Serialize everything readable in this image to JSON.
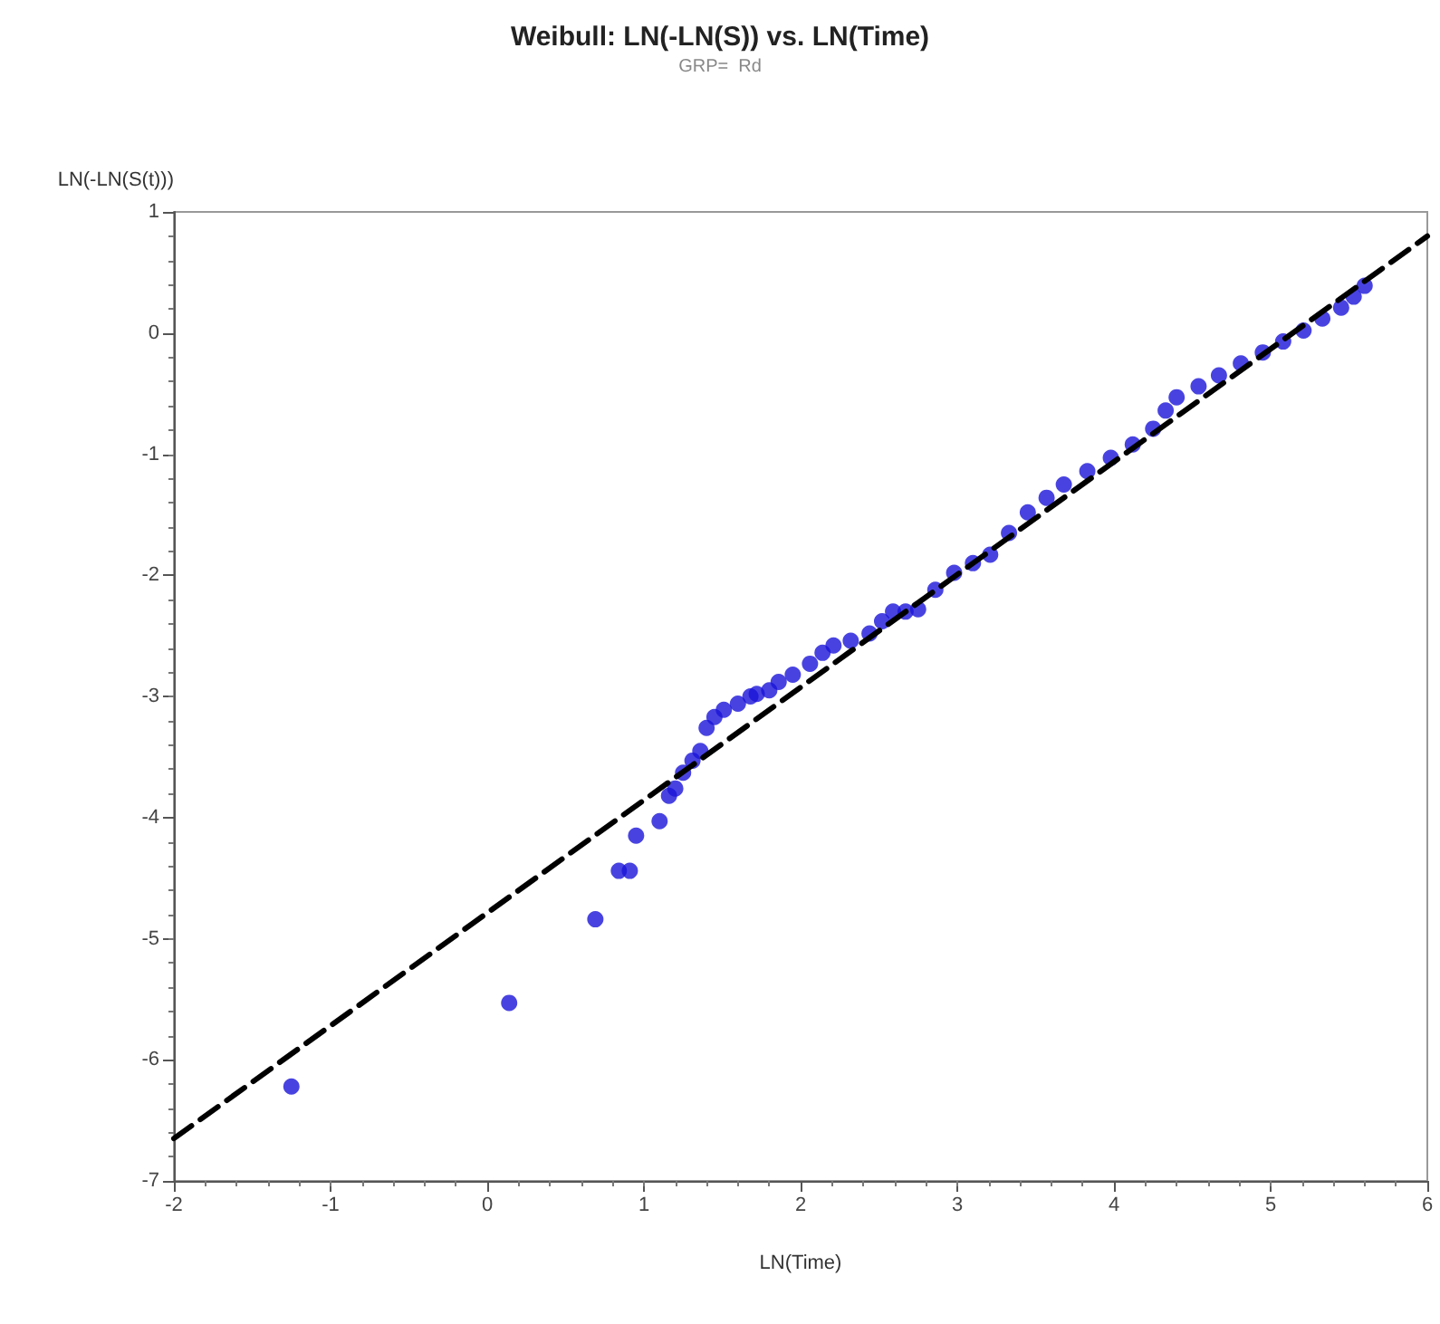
{
  "chart_data": {
    "type": "scatter",
    "title": "Weibull: LN(-LN(S)) vs. LN(Time)",
    "subtitle": "GRP=  Rd",
    "xlabel": "LN(Time)",
    "ylabel": "LN(-LN(S(t)))",
    "xlim": [
      -2,
      6
    ],
    "xticks": [
      -2,
      -1,
      0,
      1,
      2,
      3,
      4,
      5,
      6
    ],
    "ylim": [
      -7,
      1
    ],
    "yticks": [
      -7,
      -6,
      -5,
      -4,
      -3,
      -2,
      -1,
      0,
      1
    ],
    "grid": false,
    "marker": "circle",
    "series": [
      {
        "color": "#1a14d8",
        "x": [
          -1.25,
          0.14,
          0.69,
          0.84,
          0.91,
          0.95,
          1.1,
          1.16,
          1.2,
          1.25,
          1.31,
          1.36,
          1.4,
          1.45,
          1.51,
          1.6,
          1.68,
          1.72,
          1.8,
          1.86,
          1.95,
          2.06,
          2.14,
          2.21,
          2.32,
          2.44,
          2.52,
          2.59,
          2.67,
          2.75,
          2.86,
          2.98,
          3.1,
          3.21,
          3.33,
          3.45,
          3.57,
          3.68,
          3.83,
          3.98,
          4.12,
          4.25,
          4.33,
          4.4,
          4.54,
          4.67,
          4.81,
          4.95,
          5.08,
          5.21,
          5.33,
          5.45,
          5.53,
          5.6
        ],
        "values": [
          -6.22,
          -5.53,
          -4.84,
          -4.44,
          -4.44,
          -4.15,
          -4.03,
          -3.82,
          -3.76,
          -3.63,
          -3.53,
          -3.45,
          -3.26,
          -3.17,
          -3.11,
          -3.06,
          -3.0,
          -2.98,
          -2.95,
          -2.88,
          -2.82,
          -2.73,
          -2.64,
          -2.58,
          -2.54,
          -2.48,
          -2.38,
          -2.3,
          -2.3,
          -2.28,
          -2.12,
          -1.98,
          -1.9,
          -1.83,
          -1.65,
          -1.48,
          -1.36,
          -1.25,
          -1.14,
          -1.03,
          -0.92,
          -0.79,
          -0.64,
          -0.53,
          -0.44,
          -0.35,
          -0.25,
          -0.16,
          -0.07,
          0.02,
          0.12,
          0.21,
          0.3,
          0.39
        ]
      },
      {
        "type": "line",
        "color": "#000000",
        "line_style": "dashed",
        "marker": "none",
        "x": [
          -2,
          6
        ],
        "values": [
          -6.65,
          0.8
        ]
      }
    ]
  }
}
